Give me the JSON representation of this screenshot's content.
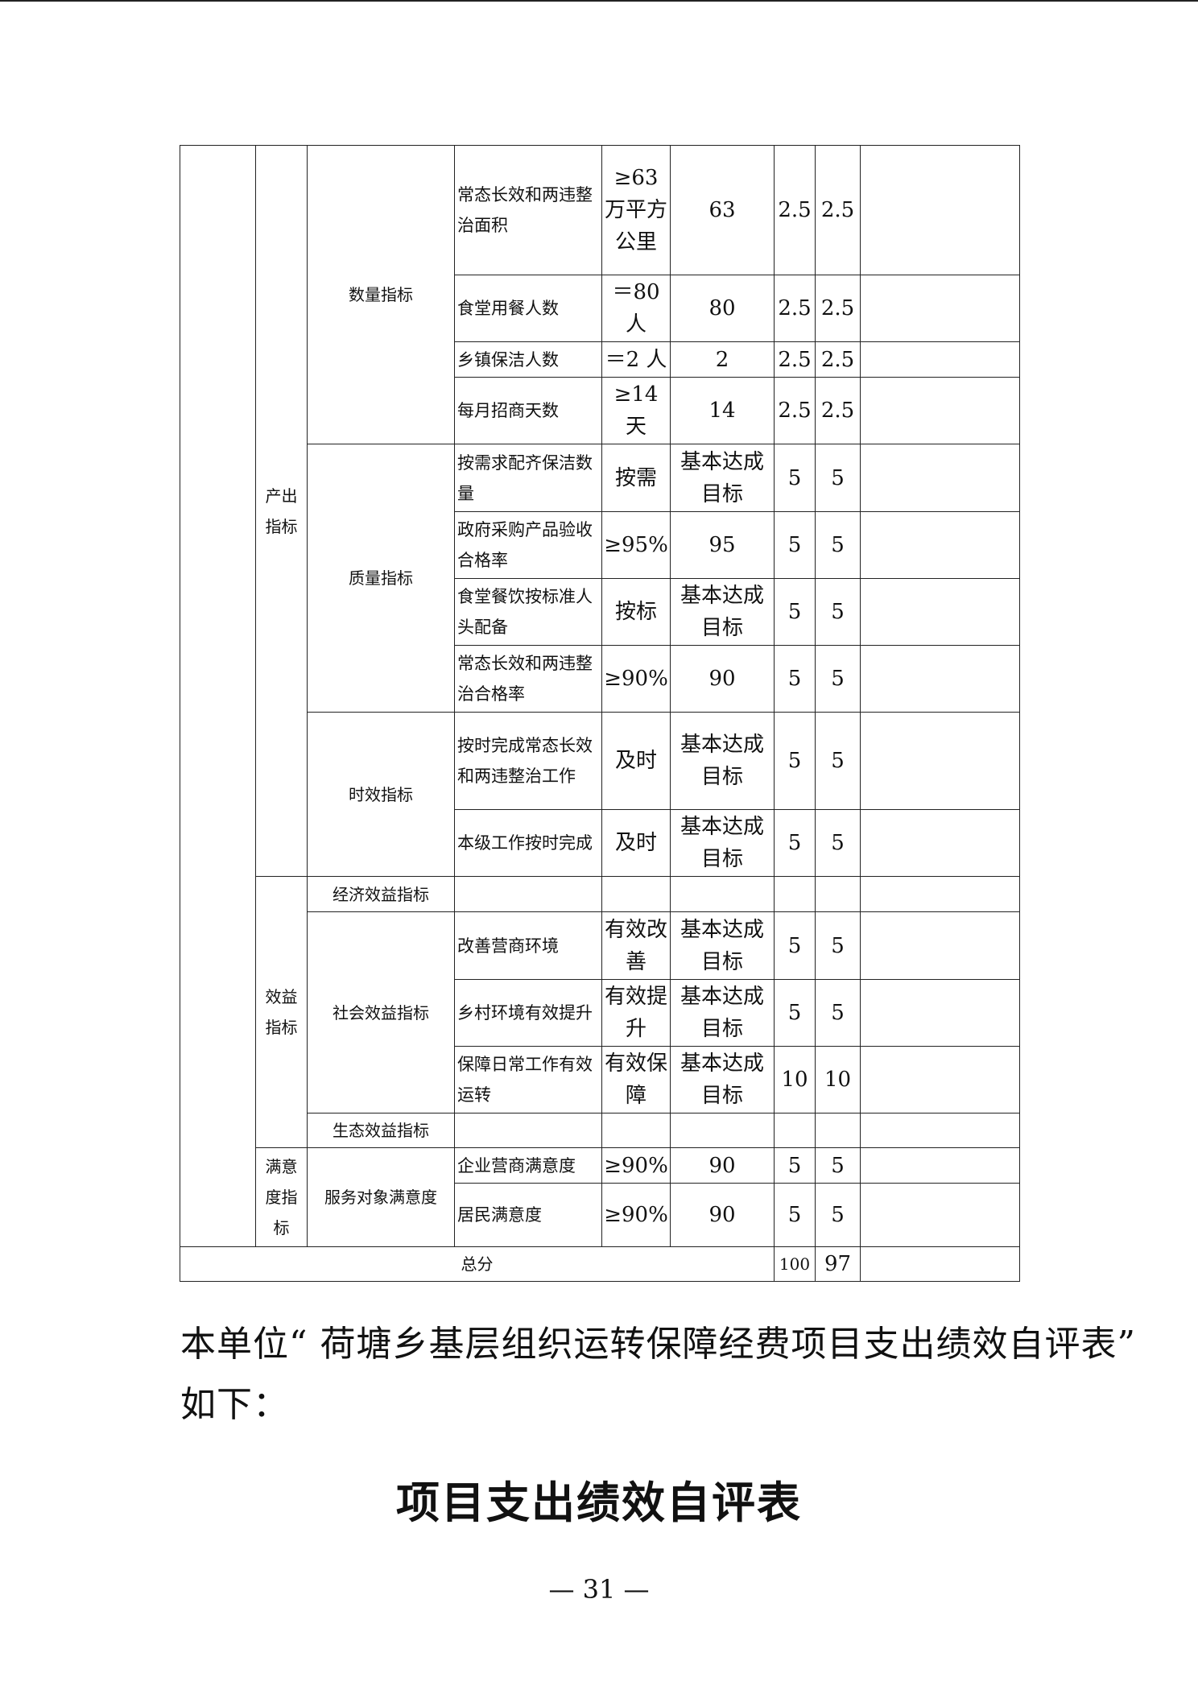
{
  "table": {
    "rows": [
      {
        "name": "常态长效和两违整治面积",
        "target": "≥63万平方公里",
        "actual": "63",
        "weight": "2.5",
        "score": "2.5"
      },
      {
        "name": "食堂用餐人数",
        "target": "＝80人",
        "actual": "80",
        "weight": "2.5",
        "score": "2.5"
      },
      {
        "name": "乡镇保洁人数",
        "target": "＝2 人",
        "actual": "2",
        "weight": "2.5",
        "score": "2.5"
      },
      {
        "name": "每月招商天数",
        "target": "≥14天",
        "actual": "14",
        "weight": "2.5",
        "score": "2.5"
      },
      {
        "name": "按需求配齐保洁数量",
        "target": "按需",
        "actual": "基本达成目标",
        "weight": "5",
        "score": "5"
      },
      {
        "name": "政府采购产品验收合格率",
        "target": "≥95%",
        "actual": "95",
        "weight": "5",
        "score": "5"
      },
      {
        "name": "食堂餐饮按标准人头配备",
        "target": "按标",
        "actual": "基本达成目标",
        "weight": "5",
        "score": "5"
      },
      {
        "name": "常态长效和两违整治合格率",
        "target": "≥90%",
        "actual": "90",
        "weight": "5",
        "score": "5"
      },
      {
        "name": "按时完成常态长效和两违整治工作",
        "target": "及时",
        "actual": "基本达成目标",
        "weight": "5",
        "score": "5"
      },
      {
        "name": "本级工作按时完成",
        "target": "及时",
        "actual": "基本达成目标",
        "weight": "5",
        "score": "5"
      },
      {
        "name": "改善营商环境",
        "target": "有效改善",
        "actual": "基本达成目标",
        "weight": "5",
        "score": "5"
      },
      {
        "name": "乡村环境有效提升",
        "target": "有效提升",
        "actual": "基本达成目标",
        "weight": "5",
        "score": "5"
      },
      {
        "name": "保障日常工作有效运转",
        "target": "有效保障",
        "actual": "基本达成目标",
        "weight": "10",
        "score": "10"
      },
      {
        "name": "企业营商满意度",
        "target": "≥90%",
        "actual": "90",
        "weight": "5",
        "score": "5"
      },
      {
        "name": "居民满意度",
        "target": "≥90%",
        "actual": "90",
        "weight": "5",
        "score": "5"
      }
    ],
    "level1": {
      "output": "产出指标",
      "benefit": "效益指标",
      "satisfaction": "满意度指标"
    },
    "level2": {
      "quantity": "数量指标",
      "quality": "质量指标",
      "timeliness": "时效指标",
      "economic": "经济效益指标",
      "social": "社会效益指标",
      "ecological": "生态效益指标",
      "service": "服务对象满意度"
    },
    "total": {
      "label": "总分",
      "weight": "100",
      "score": "97"
    }
  },
  "paragraph": {
    "line1": "本单位“ 荷塘乡基层组织运转保障经费项目支出绩效自评表”",
    "line2": "如下："
  },
  "section_title": "项目支出绩效自评表",
  "page_number": "— 31 —"
}
